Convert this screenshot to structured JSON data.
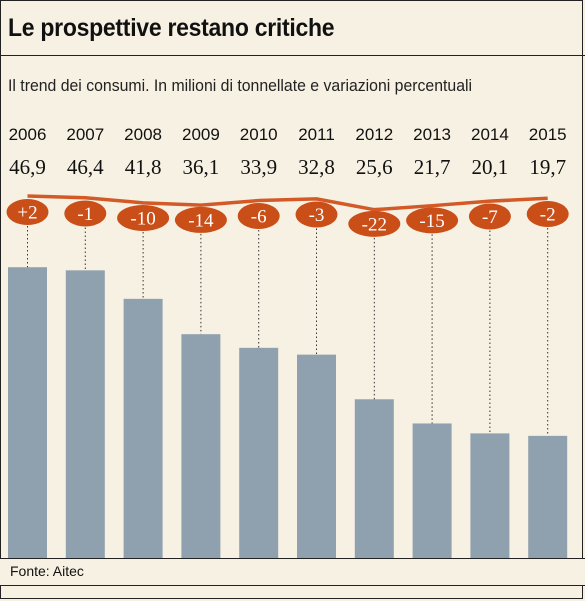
{
  "header": {
    "title": "Le prospettive restano critiche",
    "subtitle": "Il trend dei consumi. In milioni di tonnellate e variazioni percentuali"
  },
  "footer": {
    "source": "Fonte: Aitec"
  },
  "colors": {
    "bar": "#8fa1ae",
    "line": "#d35a27",
    "label_bg": "#c94e18",
    "background": "#f7f1e3"
  },
  "chart_data": {
    "type": "bar",
    "categories": [
      "2006",
      "2007",
      "2008",
      "2009",
      "2010",
      "2011",
      "2012",
      "2013",
      "2014",
      "2015"
    ],
    "values": [
      46.9,
      46.4,
      41.8,
      36.1,
      33.9,
      32.8,
      25.6,
      21.7,
      20.1,
      19.7
    ],
    "value_labels": [
      "46,9",
      "46,4",
      "41,8",
      "36,1",
      "33,9",
      "32,8",
      "25,6",
      "21,7",
      "20,1",
      "19,7"
    ],
    "pct_change": [
      2,
      -1,
      -10,
      -14,
      -6,
      -3,
      -22,
      -15,
      -7,
      -2
    ],
    "pct_labels": [
      "+2",
      "-1",
      "-10",
      "-14",
      "-6",
      "-3",
      "-22",
      "-15",
      "-7",
      "-2"
    ],
    "ylim": [
      0,
      50
    ],
    "grid": false,
    "xlabel": "",
    "ylabel": ""
  }
}
